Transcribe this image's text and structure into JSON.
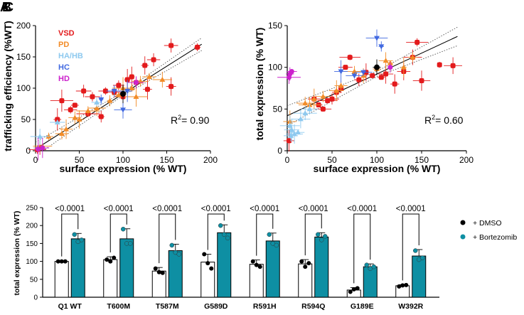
{
  "panel_labels": {
    "a": "A",
    "b": "B",
    "c": "C"
  },
  "colors": {
    "VSD": "#e31a1c",
    "PD": "#f28c28",
    "HA/HB": "#8ec9ef",
    "HC": "#4169e1",
    "HD": "#cc22cc",
    "WT": "#000000",
    "dmso": "#ffffff",
    "bortezomib": "#0e8fa3"
  },
  "chart_data": [
    {
      "type": "scatter",
      "xlabel": "surface expression (% WT)",
      "ylabel": "trafficking efficiency (%WT)",
      "xlim": [
        0,
        200
      ],
      "ylim": [
        0,
        220
      ],
      "xticks": [
        "0",
        "50",
        "100",
        "150",
        "200"
      ],
      "yticks": [
        "0",
        "50",
        "100",
        "150",
        "200"
      ],
      "legend": [
        "VSD",
        "PD",
        "HA/HB",
        "HC",
        "HD"
      ],
      "r2_label": "R",
      "r2_value": "= 0.90",
      "fit": {
        "slope": 0.97,
        "intercept": 3
      },
      "series": [
        {
          "name": "VSD",
          "points": [
            [
              155,
              185
            ],
            [
              185,
              182
            ],
            [
              135,
              160
            ],
            [
              110,
              130
            ],
            [
              115,
              120
            ],
            [
              155,
              113
            ],
            [
              90,
              103
            ],
            [
              80,
              105
            ],
            [
              100,
              95
            ],
            [
              55,
              105
            ],
            [
              45,
              80
            ],
            [
              30,
              88
            ],
            [
              75,
              60
            ],
            [
              60,
              65
            ],
            [
              5,
              5
            ],
            [
              2,
              2
            ],
            [
              25,
              55
            ],
            [
              40,
              72
            ],
            [
              65,
              95
            ],
            [
              125,
              150
            ],
            [
              95,
              115
            ],
            [
              105,
              125
            ],
            [
              128,
              108
            ]
          ]
        },
        {
          "name": "PD",
          "points": [
            [
              130,
              130
            ],
            [
              120,
              122
            ],
            [
              145,
              125
            ],
            [
              110,
              110
            ],
            [
              95,
              98
            ],
            [
              85,
              88
            ],
            [
              70,
              75
            ],
            [
              60,
              70
            ],
            [
              45,
              58
            ],
            [
              35,
              38
            ],
            [
              30,
              30
            ],
            [
              15,
              25
            ],
            [
              8,
              8
            ],
            [
              50,
              55
            ],
            [
              100,
              110
            ],
            [
              115,
              95
            ]
          ]
        },
        {
          "name": "HA/HB",
          "points": [
            [
              5,
              25
            ],
            [
              25,
              50
            ],
            [
              70,
              85
            ],
            [
              3,
              5
            ]
          ]
        },
        {
          "name": "HC",
          "points": [
            [
              100,
              72
            ],
            [
              105,
              105
            ],
            [
              75,
              90
            ],
            [
              90,
              105
            ]
          ]
        },
        {
          "name": "HD",
          "points": [
            [
              3,
              3
            ],
            [
              8,
              5
            ],
            [
              115,
              120
            ]
          ]
        },
        {
          "name": "WT",
          "points": [
            [
              100,
              100
            ]
          ]
        }
      ]
    },
    {
      "type": "scatter",
      "xlabel": "surface expression (% WT)",
      "ylabel": "total expression (% WT)",
      "xlim": [
        0,
        200
      ],
      "ylim": [
        0,
        150
      ],
      "xticks": [
        "0",
        "50",
        "100",
        "150",
        "200"
      ],
      "yticks": [
        "0",
        "50",
        "100",
        "150"
      ],
      "r2_label": "R",
      "r2_value": "= 0.60",
      "fit": {
        "slope": 0.5,
        "intercept": 42
      },
      "series": [
        {
          "name": "VSD",
          "points": [
            [
              145,
              130
            ],
            [
              170,
              103
            ],
            [
              185,
              102
            ],
            [
              150,
              84
            ],
            [
              120,
              80
            ],
            [
              105,
              88
            ],
            [
              95,
              90
            ],
            [
              110,
              92
            ],
            [
              70,
              112
            ],
            [
              65,
              100
            ],
            [
              80,
              85
            ],
            [
              60,
              75
            ],
            [
              55,
              70
            ],
            [
              45,
              60
            ],
            [
              35,
              55
            ],
            [
              40,
              50
            ],
            [
              30,
              62
            ],
            [
              50,
              62
            ],
            [
              88,
              94
            ],
            [
              130,
              95
            ],
            [
              2,
              12
            ],
            [
              140,
              112
            ]
          ]
        },
        {
          "name": "PD",
          "points": [
            [
              140,
              112
            ],
            [
              130,
              100
            ],
            [
              115,
              105
            ],
            [
              100,
              98
            ],
            [
              85,
              90
            ],
            [
              60,
              78
            ],
            [
              55,
              72
            ],
            [
              40,
              65
            ],
            [
              30,
              62
            ],
            [
              20,
              57
            ],
            [
              25,
              55
            ],
            [
              3,
              35
            ],
            [
              75,
              95
            ],
            [
              110,
              108
            ]
          ]
        },
        {
          "name": "HA/HB",
          "points": [
            [
              3,
              30
            ],
            [
              5,
              25
            ],
            [
              8,
              20
            ],
            [
              12,
              22
            ],
            [
              20,
              45
            ],
            [
              25,
              50
            ],
            [
              15,
              38
            ],
            [
              4,
              18
            ]
          ]
        },
        {
          "name": "HC",
          "points": [
            [
              100,
              135
            ],
            [
              105,
              125
            ],
            [
              60,
              95
            ],
            [
              75,
              90
            ],
            [
              85,
              94
            ]
          ]
        },
        {
          "name": "HD",
          "points": [
            [
              3,
              92
            ],
            [
              5,
              95
            ],
            [
              2,
              88
            ],
            [
              115,
              100
            ]
          ]
        },
        {
          "name": "WT",
          "points": [
            [
              100,
              100
            ]
          ]
        }
      ]
    },
    {
      "type": "bar",
      "ylabel": "total expression (% WT)",
      "ylim": [
        0,
        250
      ],
      "yticks": [
        "0",
        "50",
        "100",
        "150",
        "200",
        "250"
      ],
      "categories": [
        "Q1 WT",
        "T600M",
        "T587M",
        "G589D",
        "R591H",
        "R594Q",
        "G189E",
        "W392R"
      ],
      "series": [
        {
          "name": "+ DMSO",
          "values": [
            100,
            105,
            73,
            98,
            92,
            93,
            20,
            32
          ],
          "errors": [
            2,
            8,
            10,
            22,
            12,
            12,
            7,
            3
          ]
        },
        {
          "name": "+ Bortezomib",
          "values": [
            163,
            163,
            130,
            180,
            157,
            168,
            85,
            115
          ],
          "errors": [
            15,
            28,
            18,
            22,
            22,
            12,
            8,
            18
          ]
        }
      ],
      "replicates": {
        "+ DMSO": [
          [
            100,
            100,
            100
          ],
          [
            105,
            100,
            110
          ],
          [
            80,
            70,
            68
          ],
          [
            120,
            95,
            80
          ],
          [
            100,
            90,
            85
          ],
          [
            100,
            85,
            95
          ],
          [
            15,
            22,
            25
          ],
          [
            30,
            33,
            34
          ]
        ],
        "+ Bortezomib": [
          [
            175,
            155,
            160
          ],
          [
            190,
            150,
            150
          ],
          [
            145,
            125,
            120
          ],
          [
            200,
            175,
            165
          ],
          [
            175,
            150,
            145
          ],
          [
            175,
            160,
            170
          ],
          [
            90,
            80,
            85
          ],
          [
            130,
            105,
            110
          ]
        ]
      },
      "significance": [
        "<0.0001",
        "<0.0001",
        "<0.0001",
        "<0.0001",
        "<0.0001",
        "<0.0001",
        "<0.0001",
        "<0.0001"
      ],
      "legend": [
        "+ DMSO",
        "+ Bortezomib"
      ]
    }
  ]
}
